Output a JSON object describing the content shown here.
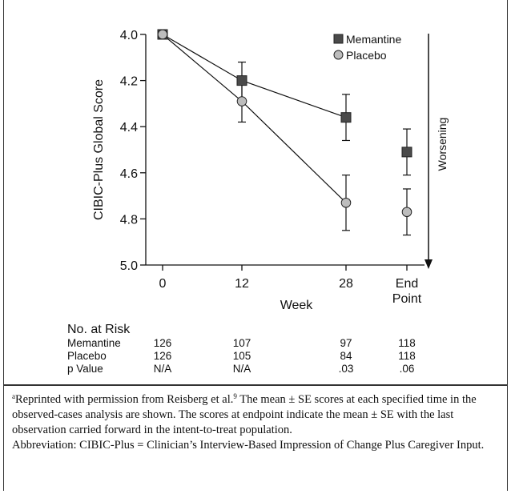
{
  "chart_data": {
    "type": "line",
    "ylabel": "CIBIC-Plus Global Score",
    "xlabel": "Week",
    "categories": [
      "0",
      "12",
      "28",
      "End Point"
    ],
    "ylim": [
      4.0,
      5.0
    ],
    "y_inverted": true,
    "y_ticks": [
      "4.0",
      "4.2",
      "4.4",
      "4.6",
      "4.8",
      "5.0"
    ],
    "direction_label": "Worsening",
    "grid": false,
    "legend_position": "top-right",
    "series": [
      {
        "name": "Memantine",
        "marker": "square",
        "color": "#4a4a4a",
        "values": [
          4.0,
          4.2,
          4.36,
          4.51
        ],
        "se": [
          0.0,
          0.08,
          0.1,
          0.1
        ],
        "connected": [
          true,
          true,
          true,
          false
        ]
      },
      {
        "name": "Placebo",
        "marker": "circle",
        "color": "#bdbdbd",
        "values": [
          4.0,
          4.29,
          4.73,
          4.77
        ],
        "se": [
          0.0,
          0.09,
          0.12,
          0.1
        ],
        "connected": [
          true,
          true,
          true,
          false
        ]
      }
    ]
  },
  "risk_table": {
    "title": "No. at Risk",
    "rows": [
      {
        "label": "Memantine",
        "values": [
          "126",
          "107",
          "97",
          "118"
        ]
      },
      {
        "label": "Placebo",
        "values": [
          "126",
          "105",
          "84",
          "118"
        ]
      },
      {
        "label": "p Value",
        "values": [
          "N/A",
          "N/A",
          ".03",
          ".06"
        ]
      }
    ]
  },
  "notes": {
    "superscript_a": "a",
    "line1_a": "Reprinted with permission from Reisberg et al.",
    "ref": "9",
    "line1_b": " The mean ± SE scores at each specified time in the observed-cases analysis are shown. The scores at endpoint indicate the mean ± SE with the last observation carried forward in the intent-to-treat population.",
    "abbreviation": "Abbreviation: CIBIC-Plus = Clinician’s Interview-Based Impression of Change Plus Caregiver Input."
  },
  "colors": {
    "frame": "#333333",
    "axis": "#111111"
  }
}
